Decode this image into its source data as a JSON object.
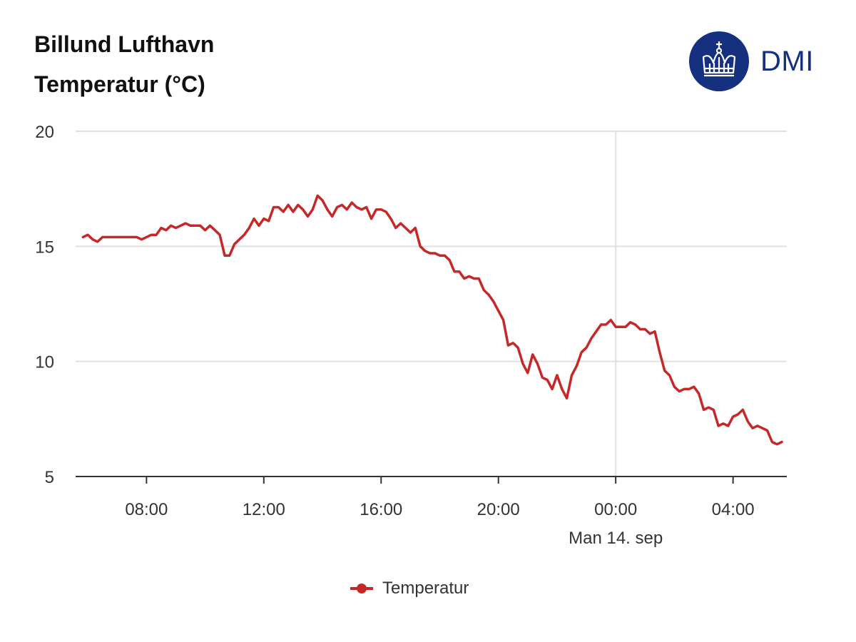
{
  "header": {
    "title_line1": "Billund Lufthavn",
    "title_line2": "Temperatur (°C)"
  },
  "logo": {
    "text": "DMI",
    "icon": "crown-icon",
    "color": "#14307f"
  },
  "colors": {
    "series": "#c62828",
    "grid": "#e0e0e0",
    "axis": "#333333"
  },
  "chart_data": {
    "type": "line",
    "title": "Temperatur (°C)",
    "ylim": [
      5,
      20
    ],
    "yticks": [
      20,
      15,
      10,
      5
    ],
    "x_unit": "time of day",
    "xlim": [
      "05:35",
      "29:50"
    ],
    "xticks": [
      "08:00",
      "12:00",
      "16:00",
      "20:00",
      "00:00",
      "04:00"
    ],
    "date_marker": {
      "at": "00:00",
      "label": "Man 14. sep"
    },
    "grid": true,
    "legend": {
      "position": "bottom",
      "entries": [
        "Temperatur"
      ]
    },
    "series": [
      {
        "name": "Temperatur",
        "x": [
          "05:50",
          "06:00",
          "06:10",
          "06:20",
          "06:30",
          "06:40",
          "06:50",
          "07:00",
          "07:10",
          "07:20",
          "07:30",
          "07:40",
          "07:50",
          "08:00",
          "08:10",
          "08:20",
          "08:30",
          "08:40",
          "08:50",
          "09:00",
          "09:10",
          "09:20",
          "09:30",
          "09:40",
          "09:50",
          "10:00",
          "10:10",
          "10:20",
          "10:30",
          "10:40",
          "10:50",
          "11:00",
          "11:10",
          "11:20",
          "11:30",
          "11:40",
          "11:50",
          "12:00",
          "12:10",
          "12:20",
          "12:30",
          "12:40",
          "12:50",
          "13:00",
          "13:10",
          "13:20",
          "13:30",
          "13:40",
          "13:50",
          "14:00",
          "14:10",
          "14:20",
          "14:30",
          "14:40",
          "14:50",
          "15:00",
          "15:10",
          "15:20",
          "15:30",
          "15:40",
          "15:50",
          "16:00",
          "16:10",
          "16:20",
          "16:30",
          "16:40",
          "16:50",
          "17:00",
          "17:10",
          "17:20",
          "17:30",
          "17:40",
          "17:50",
          "18:00",
          "18:10",
          "18:20",
          "18:30",
          "18:40",
          "18:50",
          "19:00",
          "19:10",
          "19:20",
          "19:30",
          "19:40",
          "19:50",
          "20:00",
          "20:10",
          "20:20",
          "20:30",
          "20:40",
          "20:50",
          "21:00",
          "21:10",
          "21:20",
          "21:30",
          "21:40",
          "21:50",
          "22:00",
          "22:10",
          "22:20",
          "22:30",
          "22:40",
          "22:50",
          "23:00",
          "23:10",
          "23:20",
          "23:30",
          "23:40",
          "23:50",
          "24:00",
          "24:10",
          "24:20",
          "24:30",
          "24:40",
          "24:50",
          "25:00",
          "25:10",
          "25:20",
          "25:30",
          "25:40",
          "25:50",
          "26:00",
          "26:10",
          "26:20",
          "26:30",
          "26:40",
          "26:50",
          "27:00",
          "27:10",
          "27:20",
          "27:30",
          "27:40",
          "27:50",
          "28:00",
          "28:10",
          "28:20",
          "28:30",
          "28:40",
          "28:50",
          "29:00",
          "29:10",
          "29:20",
          "29:30",
          "29:40"
        ],
        "values": [
          15.4,
          15.5,
          15.3,
          15.2,
          15.4,
          15.4,
          15.4,
          15.4,
          15.4,
          15.4,
          15.4,
          15.4,
          15.3,
          15.4,
          15.5,
          15.5,
          15.8,
          15.7,
          15.9,
          15.8,
          15.9,
          16.0,
          15.9,
          15.9,
          15.9,
          15.7,
          15.9,
          15.7,
          15.5,
          14.6,
          14.6,
          15.1,
          15.3,
          15.5,
          15.8,
          16.2,
          15.9,
          16.2,
          16.1,
          16.7,
          16.7,
          16.5,
          16.8,
          16.5,
          16.8,
          16.6,
          16.3,
          16.6,
          17.2,
          17.0,
          16.6,
          16.3,
          16.7,
          16.8,
          16.6,
          16.9,
          16.7,
          16.6,
          16.7,
          16.2,
          16.6,
          16.6,
          16.5,
          16.2,
          15.8,
          16.0,
          15.8,
          15.6,
          15.8,
          15.0,
          14.8,
          14.7,
          14.7,
          14.6,
          14.6,
          14.4,
          13.9,
          13.9,
          13.6,
          13.7,
          13.6,
          13.6,
          13.1,
          12.9,
          12.6,
          12.2,
          11.8,
          10.7,
          10.8,
          10.6,
          9.9,
          9.5,
          10.3,
          9.9,
          9.3,
          9.2,
          8.8,
          9.4,
          8.8,
          8.4,
          9.4,
          9.8,
          10.4,
          10.6,
          11.0,
          11.3,
          11.6,
          11.6,
          11.8,
          11.5,
          11.5,
          11.5,
          11.7,
          11.6,
          11.4,
          11.4,
          11.2,
          11.3,
          10.4,
          9.6,
          9.4,
          8.9,
          8.7,
          8.8,
          8.8,
          8.9,
          8.6,
          7.9,
          8.0,
          7.9,
          7.2,
          7.3,
          7.2,
          7.6,
          7.7,
          7.9,
          7.4,
          7.1,
          7.2,
          7.1,
          7.0,
          6.5,
          6.4,
          6.5
        ]
      }
    ]
  },
  "legend": {
    "label": "Temperatur"
  }
}
